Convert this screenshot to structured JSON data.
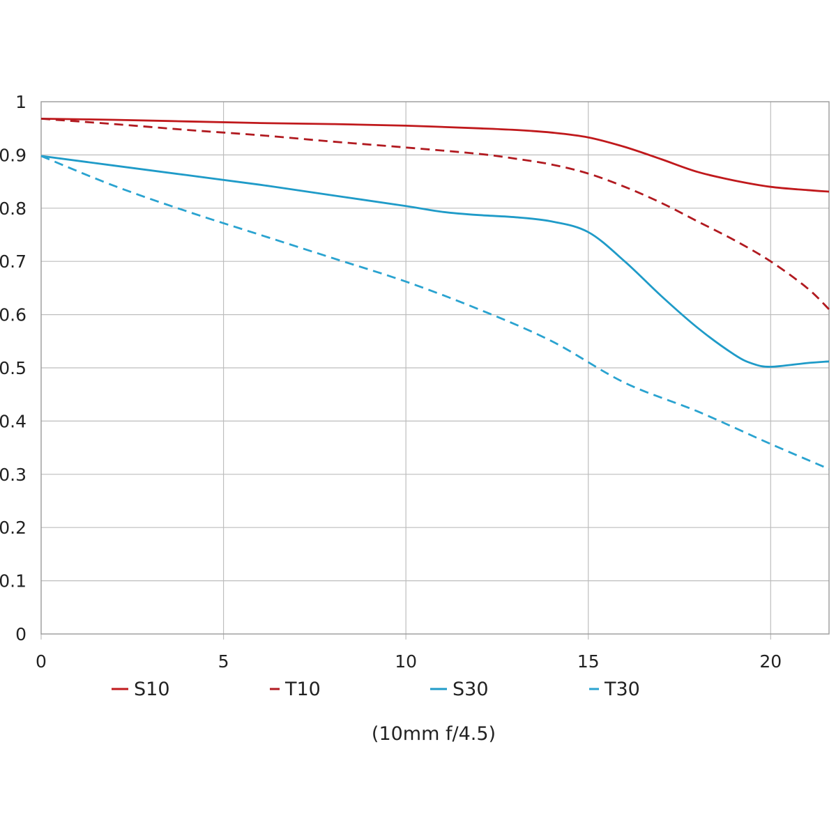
{
  "chart_data": {
    "type": "line",
    "title": "",
    "xlabel": "",
    "ylabel": "",
    "xlim": [
      0,
      21.6
    ],
    "ylim": [
      0,
      1
    ],
    "grid": true,
    "x_ticks": [
      0,
      5,
      10,
      15,
      20
    ],
    "x_tick_labels": [
      "0",
      "5",
      "10",
      "15",
      "20"
    ],
    "y_ticks": [
      0,
      0.1,
      0.2,
      0.3,
      0.4,
      0.5,
      0.6,
      0.7,
      0.8,
      0.9,
      1
    ],
    "y_tick_labels": [
      "0",
      "0.1",
      "0.2",
      "0.3",
      "0.4",
      "0.5",
      "0.6",
      "0.7",
      "0.8",
      "0.9",
      "1"
    ],
    "legend_position": "bottom",
    "caption": "(10mm f/4.5)",
    "series": [
      {
        "name": "S10",
        "color": "#c0191c",
        "dashed": false,
        "x": [
          0,
          2,
          4,
          6,
          8,
          10,
          12,
          13,
          14,
          15,
          16,
          17,
          18,
          19,
          20,
          21,
          21.6
        ],
        "y": [
          0.968,
          0.966,
          0.963,
          0.96,
          0.958,
          0.955,
          0.95,
          0.947,
          0.942,
          0.933,
          0.915,
          0.892,
          0.868,
          0.852,
          0.84,
          0.834,
          0.831
        ]
      },
      {
        "name": "T10",
        "color": "#b11a20",
        "dashed": true,
        "x": [
          0,
          2,
          4,
          6,
          8,
          10,
          12,
          13,
          14,
          15,
          16,
          17,
          18,
          19,
          20,
          21,
          21.6
        ],
        "y": [
          0.968,
          0.958,
          0.947,
          0.937,
          0.925,
          0.914,
          0.902,
          0.893,
          0.882,
          0.865,
          0.84,
          0.81,
          0.775,
          0.74,
          0.7,
          0.65,
          0.61
        ]
      },
      {
        "name": "S30",
        "color": "#1f9bc8",
        "dashed": false,
        "x": [
          0,
          2,
          4,
          6,
          8,
          10,
          11,
          12,
          13,
          14,
          15,
          16,
          17,
          18,
          19,
          19.5,
          20,
          21,
          21.6
        ],
        "y": [
          0.898,
          0.88,
          0.862,
          0.844,
          0.824,
          0.804,
          0.793,
          0.787,
          0.783,
          0.775,
          0.755,
          0.7,
          0.635,
          0.575,
          0.525,
          0.508,
          0.502,
          0.509,
          0.512
        ]
      },
      {
        "name": "T30",
        "color": "#2aa3d0",
        "dashed": true,
        "x": [
          0,
          2,
          4,
          6,
          8,
          10,
          12,
          14,
          16,
          18,
          20,
          21.6
        ],
        "y": [
          0.898,
          0.842,
          0.794,
          0.75,
          0.706,
          0.662,
          0.61,
          0.55,
          0.472,
          0.418,
          0.357,
          0.31
        ]
      }
    ]
  }
}
